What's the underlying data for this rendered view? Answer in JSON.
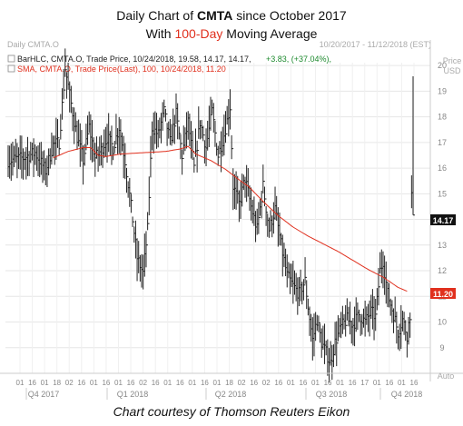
{
  "header": {
    "title_line1_pre": "Daily Chart of ",
    "title_line1_ticker": "CMTA",
    "title_line1_post": " since October 2017",
    "title_line2_pre": "With ",
    "title_line2_highlight": "100-Day",
    "title_line2_post": " Moving Average"
  },
  "panel": {
    "name": "Daily CMTA.O",
    "date_range": "10/20/2017 - 11/12/2018 (EST)",
    "price_label": "Price",
    "currency_label": "USD",
    "auto_label": "Auto"
  },
  "legend": {
    "bar_label": "BarHLC, CMTA.O, Trade Price, 10/24/2018, 19.58, 14.17, 14.17,",
    "bar_change": "+3.83, (+37.04%),",
    "sma_label": "SMA, CMTA.O, Trade Price(Last),  100,  10/24/2018, 11.20"
  },
  "footer": {
    "text": "Chart courtesy of Thomson Reuters Eikon"
  },
  "colors": {
    "bars": "#222222",
    "sma": "#e0301e",
    "grid": "#e6e6e6",
    "label_bg": "#111111",
    "sma_label_bg": "#e0301e"
  },
  "chart_data": {
    "type": "bar",
    "subtype": "ohlc-hlc",
    "ylim": [
      8,
      20.5
    ],
    "y_ticks": [
      9,
      10,
      11,
      12,
      13,
      14,
      15,
      16,
      17,
      18,
      19,
      20
    ],
    "grid": true,
    "x_tick_labels": [
      "01",
      "16",
      "01",
      "18",
      "02",
      "16",
      "01",
      "16",
      "01",
      "16",
      "02",
      "16",
      "01",
      "16",
      "01",
      "16",
      "01",
      "18",
      "02",
      "16",
      "02",
      "16",
      "01",
      "16",
      "01",
      "16",
      "01",
      "16",
      "17",
      "01",
      "16",
      "01",
      "16"
    ],
    "quarters": [
      "Q4 2017",
      "Q1 2018",
      "Q2 2018",
      "Q3 2018",
      "Q4 2018"
    ],
    "last_price": "14.17",
    "sma_last": "11.20",
    "price_keyframes": [
      [
        0,
        16.3
      ],
      [
        10,
        16.4
      ],
      [
        18,
        16.6
      ],
      [
        25,
        15.9
      ],
      [
        30,
        16.9
      ],
      [
        34,
        17.0
      ],
      [
        38,
        19.9
      ],
      [
        42,
        18.5
      ],
      [
        46,
        17.2
      ],
      [
        50,
        16.3
      ],
      [
        54,
        17.6
      ],
      [
        58,
        16.4
      ],
      [
        62,
        16.7
      ],
      [
        66,
        17.2
      ],
      [
        70,
        16.8
      ],
      [
        74,
        17.6
      ],
      [
        78,
        16.3
      ],
      [
        82,
        14.5
      ],
      [
        86,
        12.5
      ],
      [
        90,
        11.9
      ],
      [
        93,
        13.6
      ],
      [
        96,
        17.6
      ],
      [
        100,
        17.3
      ],
      [
        104,
        18.2
      ],
      [
        108,
        17.0
      ],
      [
        112,
        18.1
      ],
      [
        116,
        16.5
      ],
      [
        120,
        17.8
      ],
      [
        124,
        16.0
      ],
      [
        128,
        17.8
      ],
      [
        132,
        16.8
      ],
      [
        136,
        18.2
      ],
      [
        140,
        16.5
      ],
      [
        144,
        17.3
      ],
      [
        148,
        18.4
      ],
      [
        150,
        15.3
      ],
      [
        154,
        14.6
      ],
      [
        158,
        15.6
      ],
      [
        162,
        14.5
      ],
      [
        166,
        13.6
      ],
      [
        170,
        15.3
      ],
      [
        174,
        13.6
      ],
      [
        178,
        14.4
      ],
      [
        182,
        13.0
      ],
      [
        186,
        11.8
      ],
      [
        190,
        11.4
      ],
      [
        194,
        11.1
      ],
      [
        198,
        11.6
      ],
      [
        200,
        10.6
      ],
      [
        203,
        9.3
      ],
      [
        206,
        10.1
      ],
      [
        209,
        9.2
      ],
      [
        212,
        8.8
      ],
      [
        215,
        8.4
      ],
      [
        218,
        9.2
      ],
      [
        222,
        9.8
      ],
      [
        226,
        10.1
      ],
      [
        230,
        9.9
      ],
      [
        234,
        10.3
      ],
      [
        238,
        10.0
      ],
      [
        242,
        10.4
      ],
      [
        245,
        10.2
      ],
      [
        248,
        12.0
      ],
      [
        250,
        12.4
      ],
      [
        253,
        11.1
      ],
      [
        257,
        10.3
      ],
      [
        260,
        9.6
      ],
      [
        263,
        10.1
      ],
      [
        266,
        9.5
      ],
      [
        268,
        10.3
      ],
      [
        270,
        19.6
      ]
    ],
    "sma_keyframes": [
      [
        30,
        16.4
      ],
      [
        40,
        16.65
      ],
      [
        50,
        16.8
      ],
      [
        55,
        16.8
      ],
      [
        60,
        16.5
      ],
      [
        65,
        16.45
      ],
      [
        75,
        16.55
      ],
      [
        90,
        16.6
      ],
      [
        105,
        16.65
      ],
      [
        115,
        16.75
      ],
      [
        120,
        16.85
      ],
      [
        125,
        16.55
      ],
      [
        135,
        16.3
      ],
      [
        145,
        15.95
      ],
      [
        155,
        15.5
      ],
      [
        160,
        15.3
      ],
      [
        170,
        14.7
      ],
      [
        180,
        14.15
      ],
      [
        190,
        13.7
      ],
      [
        200,
        13.35
      ],
      [
        210,
        13.05
      ],
      [
        215,
        12.9
      ],
      [
        220,
        12.75
      ],
      [
        230,
        12.4
      ],
      [
        240,
        12.05
      ],
      [
        250,
        11.75
      ],
      [
        260,
        11.35
      ],
      [
        266,
        11.2
      ]
    ]
  }
}
